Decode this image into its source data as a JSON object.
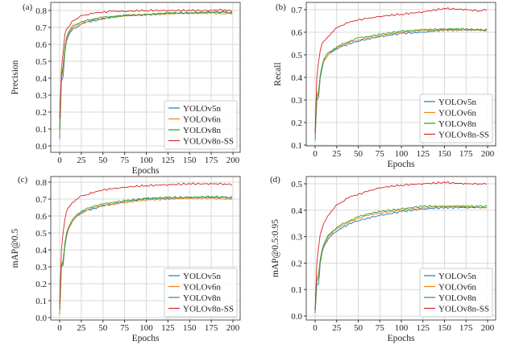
{
  "chart_data": [
    {
      "type": "line",
      "panel_label": "(a)",
      "title": "",
      "xlabel": "Epochs",
      "ylabel": "Precision",
      "xlim": [
        0,
        200
      ],
      "ylim": [
        0.0,
        0.8
      ],
      "xticks": [
        0,
        25,
        50,
        75,
        100,
        125,
        150,
        175,
        200
      ],
      "yticks": [
        0.0,
        0.1,
        0.2,
        0.3,
        0.4,
        0.5,
        0.6,
        0.7,
        0.8
      ],
      "ytick_labels": [
        "0.0",
        "0.1",
        "0.2",
        "0.3",
        "0.4",
        "0.5",
        "0.6",
        "0.7",
        "0.8"
      ],
      "grid": true,
      "legend": "bottom-right",
      "x": [
        0,
        2,
        4,
        6,
        8,
        10,
        15,
        20,
        25,
        30,
        40,
        50,
        60,
        75,
        100,
        125,
        150,
        175,
        190,
        199
      ],
      "series": [
        {
          "name": "YOLOv5n",
          "color": "#1f77b4",
          "values": [
            0.04,
            0.38,
            0.41,
            0.55,
            0.62,
            0.65,
            0.69,
            0.7,
            0.72,
            0.73,
            0.74,
            0.75,
            0.76,
            0.77,
            0.775,
            0.785,
            0.785,
            0.79,
            0.79,
            0.78
          ]
        },
        {
          "name": "YOLOv6n",
          "color": "#ff7f0e",
          "values": [
            0.07,
            0.4,
            0.45,
            0.56,
            0.63,
            0.66,
            0.7,
            0.71,
            0.72,
            0.73,
            0.745,
            0.755,
            0.76,
            0.77,
            0.775,
            0.78,
            0.785,
            0.785,
            0.78,
            0.79
          ]
        },
        {
          "name": "YOLOv8n",
          "color": "#2ca02c",
          "values": [
            0.1,
            0.41,
            0.47,
            0.58,
            0.64,
            0.67,
            0.71,
            0.72,
            0.735,
            0.74,
            0.75,
            0.76,
            0.765,
            0.77,
            0.775,
            0.785,
            0.785,
            0.79,
            0.79,
            0.785
          ]
        },
        {
          "name": "YOLOv8n-SS",
          "color": "#d62728",
          "values": [
            0.16,
            0.45,
            0.55,
            0.66,
            0.69,
            0.7,
            0.74,
            0.75,
            0.77,
            0.775,
            0.785,
            0.79,
            0.795,
            0.795,
            0.8,
            0.8,
            0.8,
            0.8,
            0.805,
            0.795
          ]
        }
      ]
    },
    {
      "type": "line",
      "panel_label": "(b)",
      "title": "",
      "xlabel": "Epochs",
      "ylabel": "Recall",
      "xlim": [
        0,
        200
      ],
      "ylim": [
        0.1,
        0.7
      ],
      "xticks": [
        0,
        25,
        50,
        75,
        100,
        125,
        150,
        175,
        200
      ],
      "yticks": [
        0.1,
        0.2,
        0.3,
        0.4,
        0.5,
        0.6,
        0.7
      ],
      "ytick_labels": [
        "0.1",
        "0.2",
        "0.3",
        "0.4",
        "0.5",
        "0.6",
        "0.7"
      ],
      "grid": true,
      "legend": "bottom-right",
      "x": [
        0,
        2,
        4,
        6,
        8,
        10,
        15,
        20,
        25,
        30,
        40,
        50,
        60,
        75,
        100,
        125,
        150,
        175,
        190,
        199
      ],
      "series": [
        {
          "name": "YOLOv5n",
          "color": "#1f77b4",
          "values": [
            0.12,
            0.3,
            0.31,
            0.4,
            0.44,
            0.47,
            0.5,
            0.515,
            0.525,
            0.535,
            0.55,
            0.56,
            0.57,
            0.58,
            0.595,
            0.6,
            0.61,
            0.61,
            0.61,
            0.61
          ]
        },
        {
          "name": "YOLOv6n",
          "color": "#ff7f0e",
          "values": [
            0.14,
            0.31,
            0.33,
            0.41,
            0.45,
            0.47,
            0.5,
            0.52,
            0.53,
            0.54,
            0.555,
            0.565,
            0.575,
            0.585,
            0.6,
            0.61,
            0.61,
            0.61,
            0.61,
            0.605
          ]
        },
        {
          "name": "YOLOv8n",
          "color": "#2ca02c",
          "values": [
            0.15,
            0.32,
            0.34,
            0.41,
            0.45,
            0.48,
            0.51,
            0.52,
            0.535,
            0.545,
            0.56,
            0.575,
            0.58,
            0.59,
            0.605,
            0.61,
            0.615,
            0.615,
            0.61,
            0.61
          ]
        },
        {
          "name": "YOLOv8n-SS",
          "color": "#d62728",
          "values": [
            0.16,
            0.4,
            0.47,
            0.52,
            0.55,
            0.56,
            0.58,
            0.6,
            0.62,
            0.63,
            0.645,
            0.655,
            0.66,
            0.67,
            0.68,
            0.69,
            0.705,
            0.7,
            0.695,
            0.7
          ]
        }
      ]
    },
    {
      "type": "line",
      "panel_label": "(c)",
      "title": "",
      "xlabel": "Epochs",
      "ylabel": "mAP@0.5",
      "xlim": [
        0,
        200
      ],
      "ylim": [
        0.0,
        0.8
      ],
      "xticks": [
        0,
        25,
        50,
        75,
        100,
        125,
        150,
        175,
        200
      ],
      "yticks": [
        0.0,
        0.1,
        0.2,
        0.3,
        0.4,
        0.5,
        0.6,
        0.7,
        0.8
      ],
      "ytick_labels": [
        "0.0",
        "0.1",
        "0.2",
        "0.3",
        "0.4",
        "0.5",
        "0.6",
        "0.7",
        "0.8"
      ],
      "grid": true,
      "legend": "bottom-right",
      "x": [
        0,
        2,
        4,
        6,
        8,
        10,
        15,
        20,
        25,
        30,
        40,
        50,
        60,
        75,
        100,
        125,
        150,
        175,
        190,
        199
      ],
      "series": [
        {
          "name": "YOLOv5n",
          "color": "#1f77b4",
          "values": [
            0.02,
            0.3,
            0.31,
            0.42,
            0.48,
            0.52,
            0.57,
            0.6,
            0.615,
            0.63,
            0.645,
            0.66,
            0.67,
            0.685,
            0.7,
            0.705,
            0.71,
            0.71,
            0.71,
            0.705
          ]
        },
        {
          "name": "YOLOv6n",
          "color": "#ff7f0e",
          "values": [
            0.03,
            0.3,
            0.33,
            0.43,
            0.49,
            0.52,
            0.57,
            0.6,
            0.62,
            0.63,
            0.65,
            0.665,
            0.67,
            0.68,
            0.695,
            0.7,
            0.705,
            0.705,
            0.7,
            0.7
          ]
        },
        {
          "name": "YOLOv8n",
          "color": "#2ca02c",
          "values": [
            0.05,
            0.31,
            0.34,
            0.44,
            0.5,
            0.53,
            0.58,
            0.61,
            0.63,
            0.64,
            0.66,
            0.67,
            0.68,
            0.69,
            0.705,
            0.71,
            0.71,
            0.715,
            0.71,
            0.71
          ]
        },
        {
          "name": "YOLOv8n-SS",
          "color": "#d62728",
          "values": [
            0.08,
            0.4,
            0.5,
            0.58,
            0.63,
            0.65,
            0.68,
            0.7,
            0.72,
            0.725,
            0.74,
            0.755,
            0.76,
            0.77,
            0.78,
            0.785,
            0.79,
            0.79,
            0.79,
            0.785
          ]
        }
      ]
    },
    {
      "type": "line",
      "panel_label": "(d)",
      "title": "",
      "xlabel": "Epochs",
      "ylabel": "mAP@0.5:0.95",
      "xlim": [
        0,
        200
      ],
      "ylim": [
        0.0,
        0.5
      ],
      "xticks": [
        0,
        25,
        50,
        75,
        100,
        125,
        150,
        175,
        200
      ],
      "yticks": [
        0.0,
        0.1,
        0.2,
        0.3,
        0.4,
        0.5
      ],
      "ytick_labels": [
        "0.0",
        "0.1",
        "0.2",
        "0.3",
        "0.4",
        "0.5"
      ],
      "grid": true,
      "legend": "bottom-right",
      "x": [
        0,
        2,
        4,
        6,
        8,
        10,
        15,
        20,
        25,
        30,
        40,
        50,
        60,
        75,
        100,
        125,
        150,
        175,
        190,
        199
      ],
      "series": [
        {
          "name": "YOLOv5n",
          "color": "#1f77b4",
          "values": [
            0.01,
            0.12,
            0.12,
            0.2,
            0.24,
            0.26,
            0.29,
            0.31,
            0.32,
            0.33,
            0.35,
            0.36,
            0.37,
            0.38,
            0.395,
            0.405,
            0.41,
            0.41,
            0.41,
            0.41
          ]
        },
        {
          "name": "YOLOv6n",
          "color": "#ff7f0e",
          "values": [
            0.015,
            0.13,
            0.15,
            0.21,
            0.245,
            0.265,
            0.3,
            0.315,
            0.33,
            0.34,
            0.355,
            0.37,
            0.38,
            0.39,
            0.4,
            0.41,
            0.415,
            0.415,
            0.41,
            0.41
          ]
        },
        {
          "name": "YOLOv8n",
          "color": "#2ca02c",
          "values": [
            0.02,
            0.13,
            0.16,
            0.215,
            0.25,
            0.27,
            0.305,
            0.32,
            0.335,
            0.345,
            0.36,
            0.375,
            0.385,
            0.395,
            0.405,
            0.415,
            0.415,
            0.415,
            0.415,
            0.415
          ]
        },
        {
          "name": "YOLOv8n-SS",
          "color": "#d62728",
          "values": [
            0.02,
            0.2,
            0.26,
            0.31,
            0.33,
            0.35,
            0.38,
            0.4,
            0.42,
            0.43,
            0.45,
            0.46,
            0.47,
            0.485,
            0.495,
            0.5,
            0.505,
            0.5,
            0.5,
            0.5
          ]
        }
      ]
    }
  ]
}
